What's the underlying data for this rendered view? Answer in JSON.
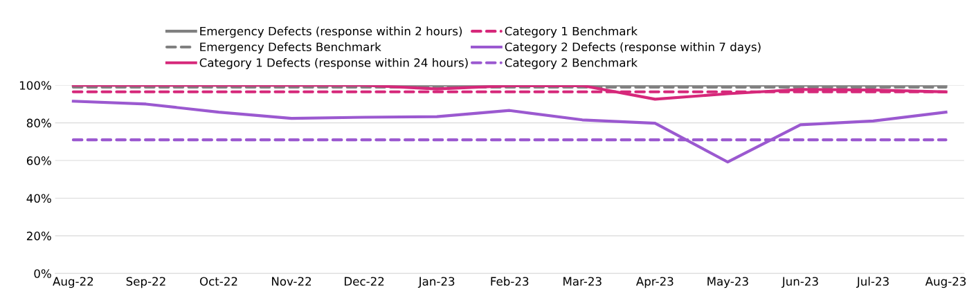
{
  "chart_data": {
    "type": "line",
    "categories": [
      "Aug-22",
      "Sep-22",
      "Oct-22",
      "Nov-22",
      "Dec-22",
      "Jan-23",
      "Feb-23",
      "Mar-23",
      "Apr-23",
      "May-23",
      "Jun-23",
      "Jul-23",
      "Aug-23"
    ],
    "series": [
      {
        "name": "Emergency Defects (response within 2 hours)",
        "color": "#808080",
        "line_style": "solid",
        "values": [
          100,
          100,
          100,
          100,
          100,
          100,
          100,
          100,
          100,
          100,
          100,
          100,
          100
        ]
      },
      {
        "name": "Emergency Defects Benchmark",
        "color": "#808080",
        "line_style": "dashed",
        "values": [
          99,
          99,
          99,
          99,
          99,
          99,
          99,
          99,
          99,
          99,
          99,
          99,
          99
        ]
      },
      {
        "name": "Category 1 Defects (response within 24 hours)",
        "color": "#d6287a",
        "line_style": "solid",
        "values": [
          100,
          100,
          100,
          100,
          100,
          98,
          99.8,
          99.8,
          92.6,
          95.5,
          97.8,
          97.5,
          96.5
        ]
      },
      {
        "name": "Category 1 Benchmark",
        "color": "#d6287a",
        "line_style": "dashed",
        "values": [
          96.5,
          96.5,
          96.5,
          96.5,
          96.5,
          96.5,
          96.5,
          96.5,
          96.5,
          96.5,
          96.5,
          96.5,
          96.5
        ]
      },
      {
        "name": "Category 2 Defects (response within 7 days)",
        "color": "#9b59d0",
        "line_style": "solid",
        "values": [
          91.5,
          90,
          85.7,
          82.4,
          83,
          83.3,
          86.6,
          81.6,
          79.8,
          59.2,
          79,
          81,
          85.7
        ]
      },
      {
        "name": "Category 2 Benchmark",
        "color": "#9b59d0",
        "line_style": "dashed",
        "values": [
          71,
          71,
          71,
          71,
          71,
          71,
          71,
          71,
          71,
          71,
          71,
          71,
          71
        ]
      }
    ],
    "ylim": [
      0,
      100
    ],
    "yticks": [
      {
        "value": 0,
        "label": "0%"
      },
      {
        "value": 20,
        "label": "20%"
      },
      {
        "value": 40,
        "label": "40%"
      },
      {
        "value": 60,
        "label": "60%"
      },
      {
        "value": 80,
        "label": "80%"
      },
      {
        "value": 100,
        "label": "100%"
      }
    ],
    "grid": "y",
    "legend": "top",
    "marker": "none"
  }
}
